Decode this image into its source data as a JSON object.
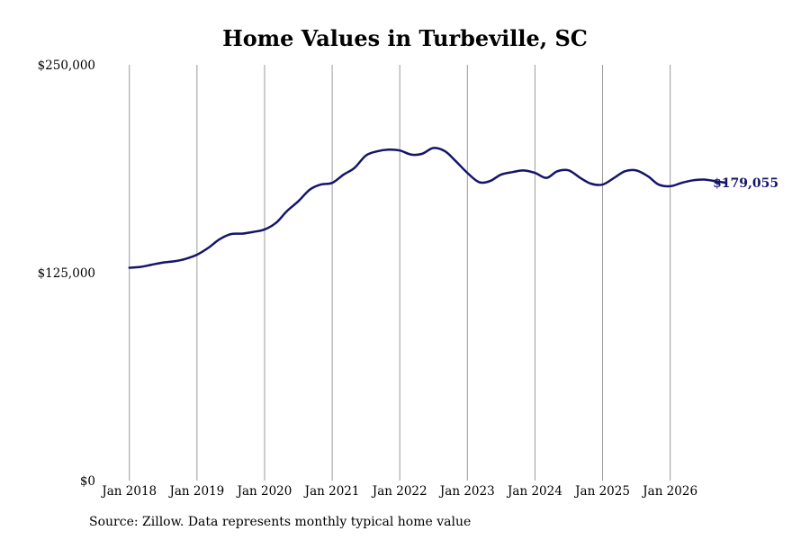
{
  "chart_data": {
    "type": "line",
    "title": "Home Values in Turbeville, SC",
    "source": "Source: Zillow. Data represents monthly typical home value",
    "ylim": [
      0,
      250000
    ],
    "y_ticks": [
      {
        "value": 0,
        "label": "$0"
      },
      {
        "value": 125000,
        "label": "$125,000"
      },
      {
        "value": 250000,
        "label": "$250,000"
      }
    ],
    "x_ticks": [
      {
        "value": 2018,
        "label": "Jan 2018"
      },
      {
        "value": 2019,
        "label": "Jan 2019"
      },
      {
        "value": 2020,
        "label": "Jan 2020"
      },
      {
        "value": 2021,
        "label": "Jan 2021"
      },
      {
        "value": 2022,
        "label": "Jan 2022"
      },
      {
        "value": 2023,
        "label": "Jan 2023"
      },
      {
        "value": 2024,
        "label": "Jan 2024"
      },
      {
        "value": 2025,
        "label": "Jan 2025"
      },
      {
        "value": 2026,
        "label": "Jan 2026"
      }
    ],
    "xlim": [
      2017.95,
      2026.95
    ],
    "grid": "vertical",
    "line_color": "#14146b",
    "end_label": "$179,055",
    "series": [
      {
        "points": [
          [
            2018.0,
            128000
          ],
          [
            2018.17,
            128500
          ],
          [
            2018.33,
            129800
          ],
          [
            2018.5,
            131100
          ],
          [
            2018.67,
            131900
          ],
          [
            2018.83,
            133300
          ],
          [
            2019.0,
            135800
          ],
          [
            2019.17,
            140000
          ],
          [
            2019.33,
            145000
          ],
          [
            2019.5,
            148200
          ],
          [
            2019.67,
            148500
          ],
          [
            2019.83,
            149500
          ],
          [
            2020.0,
            151000
          ],
          [
            2020.17,
            155000
          ],
          [
            2020.33,
            162000
          ],
          [
            2020.5,
            168000
          ],
          [
            2020.67,
            175000
          ],
          [
            2020.83,
            178000
          ],
          [
            2021.0,
            179000
          ],
          [
            2021.17,
            184000
          ],
          [
            2021.33,
            188000
          ],
          [
            2021.5,
            195500
          ],
          [
            2021.67,
            198000
          ],
          [
            2021.83,
            199000
          ],
          [
            2022.0,
            198500
          ],
          [
            2022.17,
            196000
          ],
          [
            2022.33,
            196500
          ],
          [
            2022.5,
            200000
          ],
          [
            2022.67,
            198000
          ],
          [
            2022.83,
            192000
          ],
          [
            2023.0,
            185000
          ],
          [
            2023.17,
            179500
          ],
          [
            2023.33,
            180000
          ],
          [
            2023.5,
            184000
          ],
          [
            2023.67,
            185500
          ],
          [
            2023.83,
            186500
          ],
          [
            2024.0,
            185000
          ],
          [
            2024.17,
            182000
          ],
          [
            2024.33,
            186000
          ],
          [
            2024.5,
            186500
          ],
          [
            2024.67,
            182000
          ],
          [
            2024.83,
            178500
          ],
          [
            2025.0,
            178000
          ],
          [
            2025.17,
            182000
          ],
          [
            2025.33,
            186000
          ],
          [
            2025.5,
            186500
          ],
          [
            2025.67,
            183000
          ],
          [
            2025.83,
            178000
          ],
          [
            2026.0,
            177000
          ],
          [
            2026.17,
            179000
          ],
          [
            2026.33,
            180500
          ],
          [
            2026.5,
            181000
          ],
          [
            2026.67,
            180000
          ],
          [
            2026.83,
            179055
          ]
        ]
      }
    ]
  }
}
